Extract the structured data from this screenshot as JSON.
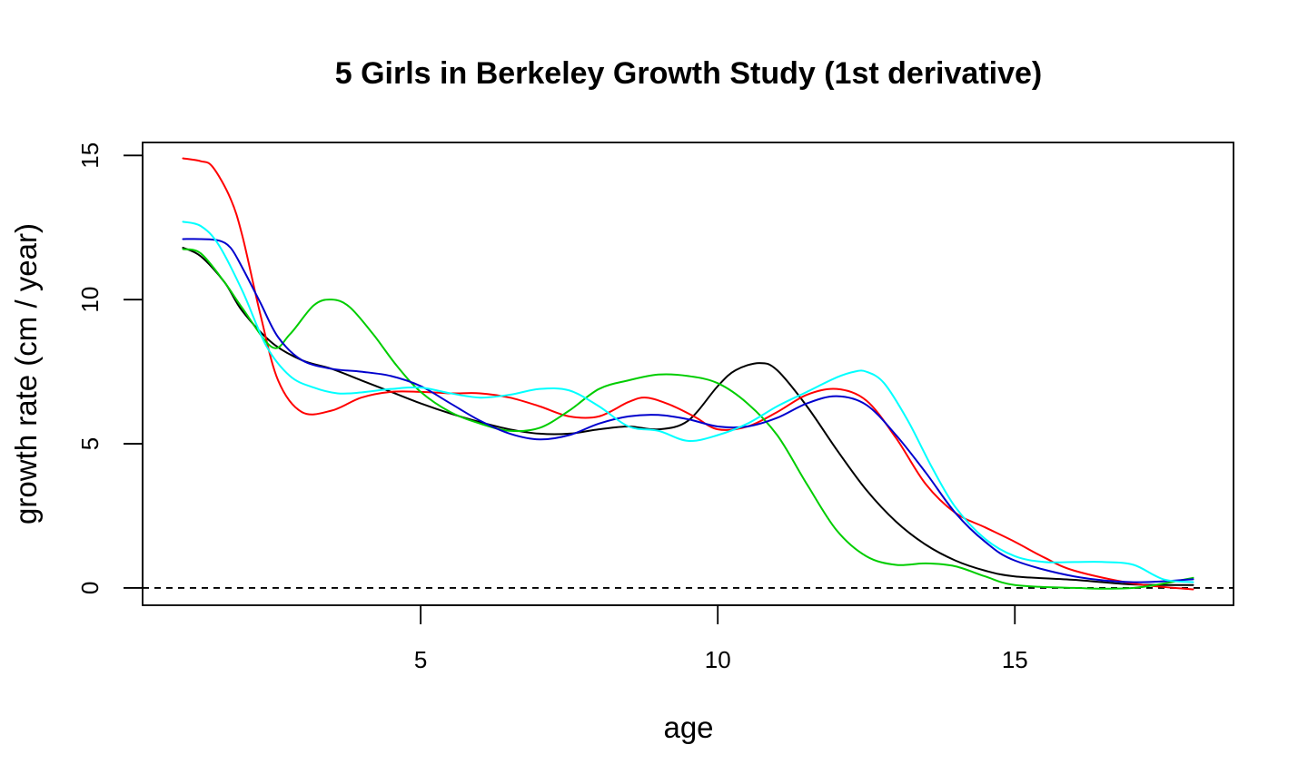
{
  "chart_data": {
    "type": "line",
    "title": "5 Girls in Berkeley Growth Study (1st derivative)",
    "xlabel": "age",
    "ylabel": "growth rate (cm / year)",
    "xlim": [
      0.32,
      18.68
    ],
    "ylim": [
      -0.6,
      15.45
    ],
    "xticks": [
      5,
      10,
      15
    ],
    "yticks": [
      0,
      5,
      10,
      15
    ],
    "grid": false,
    "legend": "none",
    "reference_line": {
      "y": 0,
      "style": "dashed",
      "color": "#000000"
    },
    "series": [
      {
        "color": "#000000",
        "x": [
          1,
          1.3,
          1.7,
          2,
          2.5,
          3,
          3.5,
          4,
          4.5,
          5,
          5.5,
          6,
          6.5,
          7,
          7.5,
          8,
          8.5,
          9,
          9.5,
          10,
          10.3,
          10.7,
          11,
          11.5,
          12,
          12.5,
          13,
          13.5,
          14,
          14.5,
          15,
          16,
          17,
          18
        ],
        "y": [
          11.8,
          11.5,
          10.6,
          9.6,
          8.5,
          7.9,
          7.6,
          7.2,
          6.8,
          6.4,
          6.05,
          5.75,
          5.5,
          5.35,
          5.35,
          5.5,
          5.6,
          5.5,
          5.8,
          7.0,
          7.55,
          7.8,
          7.55,
          6.3,
          4.8,
          3.4,
          2.3,
          1.5,
          0.95,
          0.6,
          0.4,
          0.28,
          0.12,
          0.1
        ]
      },
      {
        "color": "#ff0000",
        "x": [
          1,
          1.3,
          1.5,
          1.8,
          2,
          2.3,
          2.6,
          3,
          3.5,
          4,
          4.5,
          5,
          5.5,
          6,
          6.5,
          7,
          7.5,
          8,
          8.5,
          8.8,
          9.2,
          9.6,
          10,
          10.5,
          11,
          11.5,
          12,
          12.5,
          13,
          13.5,
          14,
          14.5,
          15,
          15.5,
          16,
          17,
          18
        ],
        "y": [
          14.9,
          14.8,
          14.6,
          13.5,
          12.2,
          9.5,
          7.2,
          6.1,
          6.15,
          6.6,
          6.8,
          6.8,
          6.75,
          6.75,
          6.6,
          6.3,
          5.95,
          5.95,
          6.45,
          6.6,
          6.35,
          5.95,
          5.5,
          5.6,
          6.1,
          6.7,
          6.9,
          6.5,
          5.2,
          3.6,
          2.6,
          2.1,
          1.6,
          1.05,
          0.6,
          0.15,
          -0.05
        ]
      },
      {
        "color": "#00cd00",
        "x": [
          1,
          1.3,
          1.7,
          2,
          2.5,
          2.8,
          3.2,
          3.5,
          3.8,
          4.2,
          4.6,
          5,
          5.5,
          6,
          6.5,
          7,
          7.5,
          8,
          8.5,
          9,
          9.5,
          10,
          10.5,
          11,
          11.5,
          12,
          12.5,
          13,
          13.5,
          14,
          14.5,
          15,
          16,
          17,
          18
        ],
        "y": [
          11.75,
          11.6,
          10.6,
          9.7,
          8.35,
          8.8,
          9.8,
          10.0,
          9.75,
          8.8,
          7.7,
          6.8,
          6.1,
          5.7,
          5.45,
          5.55,
          6.15,
          6.9,
          7.2,
          7.4,
          7.35,
          7.1,
          6.4,
          5.3,
          3.6,
          2.0,
          1.1,
          0.8,
          0.85,
          0.75,
          0.4,
          0.1,
          0.0,
          0.0,
          0.35
        ]
      },
      {
        "color": "#0000cd",
        "x": [
          1,
          1.3,
          1.6,
          1.8,
          2,
          2.3,
          2.6,
          3,
          3.5,
          4,
          4.5,
          5,
          5.5,
          6,
          6.5,
          7,
          7.5,
          8,
          8.5,
          9,
          9.5,
          10,
          10.5,
          11,
          11.5,
          12,
          12.5,
          13,
          13.5,
          14,
          14.5,
          15,
          16,
          17,
          18
        ],
        "y": [
          12.1,
          12.1,
          12.05,
          11.8,
          11.1,
          9.9,
          8.7,
          7.9,
          7.6,
          7.5,
          7.35,
          7.0,
          6.4,
          5.8,
          5.35,
          5.15,
          5.3,
          5.7,
          5.95,
          6.0,
          5.85,
          5.6,
          5.6,
          5.9,
          6.4,
          6.65,
          6.35,
          5.3,
          4.0,
          2.6,
          1.6,
          0.95,
          0.4,
          0.2,
          0.3
        ]
      },
      {
        "color": "#00ffff",
        "x": [
          1,
          1.3,
          1.6,
          2,
          2.4,
          2.8,
          3.2,
          3.6,
          4,
          4.5,
          5,
          5.5,
          6,
          6.5,
          7,
          7.5,
          8,
          8.5,
          9,
          9.5,
          10,
          10.5,
          11,
          11.5,
          12,
          12.3,
          12.5,
          12.8,
          13.2,
          13.6,
          14,
          14.5,
          15,
          15.5,
          16,
          16.5,
          17,
          17.5,
          18
        ],
        "y": [
          12.7,
          12.55,
          11.9,
          10.3,
          8.4,
          7.35,
          6.95,
          6.75,
          6.78,
          6.9,
          6.95,
          6.75,
          6.6,
          6.7,
          6.9,
          6.85,
          6.3,
          5.6,
          5.45,
          5.1,
          5.3,
          5.7,
          6.3,
          6.8,
          7.3,
          7.5,
          7.5,
          7.1,
          5.8,
          4.2,
          2.8,
          1.7,
          1.1,
          0.9,
          0.9,
          0.9,
          0.8,
          0.3,
          0.2
        ]
      }
    ]
  }
}
